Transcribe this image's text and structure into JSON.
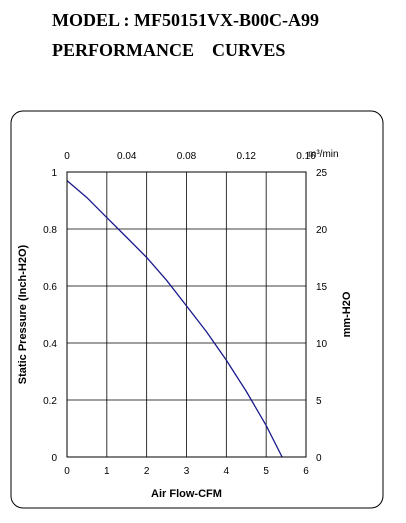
{
  "header": {
    "model_line": "MODEL : MF50151VX-B00C-A99",
    "subtitle": "PERFORMANCE    CURVES"
  },
  "chart_data": {
    "type": "line",
    "title": "MODEL : MF50151VX-B00C-A99",
    "subtitle": "PERFORMANCE    CURVES",
    "xlabel": "Air Flow-CFM",
    "ylabel": "Static Pressure (Inch-H2O)",
    "x2label": "m³/min",
    "y2label": "mm-H2O",
    "xlim": [
      0,
      6
    ],
    "ylim": [
      0,
      1
    ],
    "x2lim": [
      0,
      0.16
    ],
    "y2lim": [
      0,
      25
    ],
    "x_ticks": [
      "0",
      "1",
      "2",
      "3",
      "4",
      "5",
      "6"
    ],
    "y_ticks": [
      "0",
      "0.2",
      "0.4",
      "0.6",
      "0.8",
      "1"
    ],
    "x2_ticks": [
      "0",
      "0.04",
      "0.08",
      "0.12",
      "0.16"
    ],
    "y2_ticks": [
      "0",
      "5",
      "10",
      "15",
      "20",
      "25"
    ],
    "grid": true,
    "series": [
      {
        "color": "#1a1a8c",
        "x": [
          0,
          0.5,
          1.0,
          1.5,
          2.0,
          2.5,
          3.0,
          3.5,
          4.0,
          4.5,
          5.0,
          5.4
        ],
        "y": [
          0.97,
          0.91,
          0.84,
          0.77,
          0.7,
          0.62,
          0.53,
          0.44,
          0.34,
          0.23,
          0.11,
          0.0
        ]
      }
    ]
  }
}
